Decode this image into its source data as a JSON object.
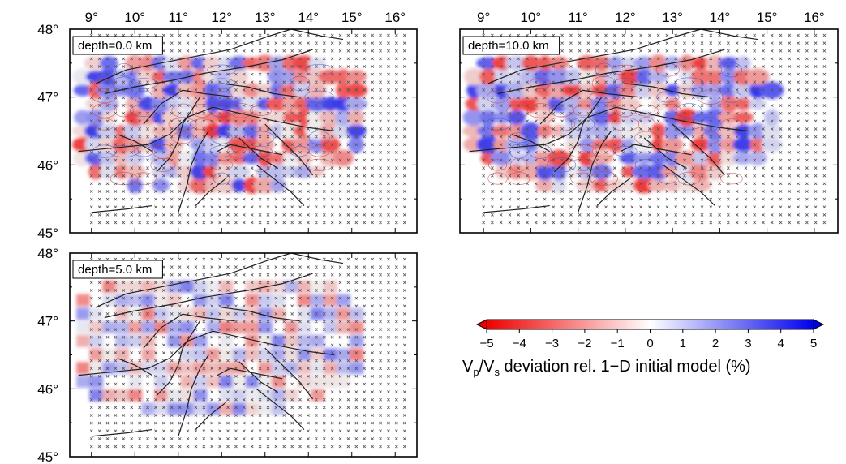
{
  "panels": [
    {
      "id": "p0",
      "label": "depth=0.0 km",
      "show_top_ticks": true,
      "show_lat_labels": true,
      "show_lat_bottom": true,
      "seed": 11
    },
    {
      "id": "p10",
      "label": "depth=10.0 km",
      "show_top_ticks": true,
      "show_lat_labels": false,
      "show_lat_bottom": false,
      "seed": 37
    },
    {
      "id": "p5",
      "label": "depth=5.0 km",
      "show_top_ticks": false,
      "show_lat_labels": true,
      "show_lat_bottom": true,
      "seed": 73
    }
  ],
  "axes": {
    "lon_ticks": [
      "9°",
      "10°",
      "11°",
      "12°",
      "13°",
      "14°",
      "15°",
      "16°"
    ],
    "lon_values": [
      9,
      10,
      11,
      12,
      13,
      14,
      15,
      16
    ],
    "lat_ticks": [
      "48°",
      "47°",
      "46°",
      "45°"
    ],
    "lat_values": [
      48,
      47,
      46,
      45
    ],
    "lon_range": [
      8.5,
      16.5
    ],
    "lat_range": [
      45,
      48
    ]
  },
  "colorbar": {
    "tick_labels": [
      "−5",
      "−4",
      "−3",
      "−2",
      "−1",
      "0",
      "1",
      "2",
      "3",
      "4",
      "5"
    ],
    "range": [
      -5,
      5
    ],
    "title_main": "V",
    "title_sub1": "p",
    "title_slash": "/V",
    "title_sub2": "s",
    "title_rest": " deviation rel. 1−D initial model (%)",
    "color_negative": "#ee0000",
    "color_zero": "#ffffff",
    "color_positive": "#0000ee"
  },
  "colors": {
    "fault_lines": "#222222",
    "grid_marker": "#555555",
    "frame": "#000000"
  }
}
